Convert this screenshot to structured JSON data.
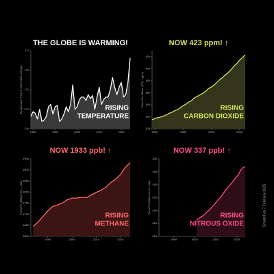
{
  "chart_data": [
    {
      "type": "line",
      "title": "THE GLOBE IS WARMING!",
      "title_color": "#ffffff",
      "annotations": [
        "RISING",
        "TEMPERATURE"
      ],
      "annotation_color": "#ffffff",
      "ylabel": "Temperature (°C) vs 1991-2020 average",
      "color": "#ffffff",
      "area_color": "#3a3a3a",
      "x": [
        1979,
        1980,
        1981,
        1982,
        1983,
        1984,
        1985,
        1986,
        1987,
        1988,
        1989,
        1990,
        1991,
        1992,
        1993,
        1994,
        1995,
        1996,
        1997,
        1998,
        1999,
        2000,
        2001,
        2002,
        2003,
        2004,
        2005,
        2006,
        2007,
        2008,
        2009,
        2010,
        2011,
        2012,
        2013,
        2014,
        2015,
        2016,
        2017,
        2018,
        2019,
        2020,
        2021,
        2022,
        2023,
        2024
      ],
      "values": [
        -0.35,
        -0.25,
        -0.28,
        -0.4,
        -0.2,
        -0.45,
        -0.42,
        -0.35,
        -0.15,
        -0.1,
        -0.3,
        -0.15,
        -0.12,
        -0.45,
        -0.4,
        -0.3,
        -0.15,
        -0.25,
        -0.1,
        0.3,
        -0.2,
        -0.15,
        0,
        0.05,
        0.05,
        -0.02,
        0.1,
        0.02,
        0.08,
        -0.2,
        0.05,
        0.25,
        -0.1,
        0,
        0.05,
        0.05,
        0.2,
        0.45,
        0.25,
        0.1,
        0.25,
        0.35,
        0.05,
        0.1,
        0.35,
        0.85
      ],
      "xlim": [
        1979,
        2024
      ],
      "xticks": [
        1980,
        1990,
        2000,
        2010,
        2020
      ],
      "ylim": [
        -0.6,
        1.0
      ],
      "yticks": [
        -0.6,
        -0.2,
        0.2,
        0.6,
        {
          "value": 1,
          "label": "1.0"
        }
      ]
    },
    {
      "type": "line",
      "title": "NOW 423 ppm! ↑",
      "title_color": "#d7e65a",
      "annotations": [
        "RISING",
        "CARBON DIOXIDE"
      ],
      "annotation_color": "#d7e65a",
      "ylabel": "Parts Per Million (CO₂ - ppm)",
      "color": "#d7e65a",
      "area_color": "#33361a",
      "x": [
        1958,
        1960,
        1962,
        1964,
        1966,
        1968,
        1970,
        1972,
        1974,
        1976,
        1978,
        1980,
        1982,
        1984,
        1986,
        1988,
        1990,
        1992,
        1994,
        1996,
        1998,
        2000,
        2002,
        2004,
        2006,
        2008,
        2010,
        2012,
        2014,
        2016,
        2018,
        2020,
        2022,
        2024
      ],
      "values": [
        315,
        317,
        318.5,
        319.5,
        321,
        323,
        325.5,
        327.5,
        330,
        332,
        335,
        338.5,
        341,
        344.5,
        347,
        351.5,
        354,
        356.5,
        359,
        362.5,
        367,
        369.5,
        373,
        377.5,
        381.9,
        385.6,
        389.9,
        393.8,
        398.6,
        404.2,
        408.7,
        414.2,
        418.5,
        423
      ],
      "xlim": [
        1958,
        2024
      ],
      "xticks": [
        1960,
        1980,
        2000,
        2020
      ],
      "ylim": [
        300,
        430
      ],
      "yticks": [
        300,
        320,
        340,
        360,
        380,
        400,
        420
      ]
    },
    {
      "type": "line",
      "title": "NOW 1933 ppb! ↑",
      "title_color": "#ff6b6b",
      "annotations": [
        "RISING",
        "METHANE"
      ],
      "annotation_color": "#ff6b6b",
      "ylabel": "Parts Per Billion (CH₄ - ppb)",
      "color": "#ff6b6b",
      "area_color": "#3d1414",
      "x": [
        1984,
        1986,
        1988,
        1990,
        1992,
        1994,
        1996,
        1998,
        2000,
        2002,
        2004,
        2006,
        2008,
        2010,
        2012,
        2014,
        2016,
        2018,
        2020,
        2022,
        2024
      ],
      "values": [
        1645,
        1665,
        1690,
        1715,
        1735,
        1742,
        1751,
        1765,
        1773,
        1773,
        1777,
        1775,
        1787,
        1799,
        1808,
        1823,
        1843,
        1858,
        1879,
        1912,
        1933
      ],
      "xlim": [
        1983,
        2024
      ],
      "xticks": [
        1990,
        2000,
        2010,
        2020
      ],
      "ylim": [
        1600,
        1950
      ],
      "yticks": [
        1600,
        1650,
        1700,
        1750,
        1800,
        1850,
        1900,
        1950
      ]
    },
    {
      "type": "line",
      "title": "NOW 337 ppb! ↑",
      "title_color": "#ff4d8d",
      "annotations": [
        "RISING",
        "NITROUS OXIDE"
      ],
      "annotation_color": "#ff4d8d",
      "ylabel": "Parts Per Billion (N₂O - ppb)",
      "color": "#ff4d8d",
      "area_color": "#2e0d18",
      "x": [
        2001,
        2002,
        2003,
        2004,
        2005,
        2006,
        2007,
        2008,
        2009,
        2010,
        2011,
        2012,
        2013,
        2014,
        2015,
        2016,
        2017,
        2018,
        2019,
        2020,
        2021,
        2022,
        2023,
        2024
      ],
      "values": [
        316.3,
        316.9,
        317.6,
        318.0,
        318.7,
        319.6,
        320.2,
        321.2,
        322.0,
        323.0,
        324.1,
        325.0,
        325.9,
        327.1,
        328.2,
        329.3,
        330.1,
        331.2,
        332.1,
        333.2,
        334.3,
        335.8,
        336.7,
        337.0
      ],
      "xlim": [
        1983,
        2024
      ],
      "xticks": [
        1990,
        2000,
        2010,
        2020
      ],
      "ylim": [
        310,
        340
      ],
      "yticks": [
        310,
        315,
        320,
        325,
        330,
        335,
        340
      ]
    }
  ],
  "footer": "Created on 7 February 2025"
}
